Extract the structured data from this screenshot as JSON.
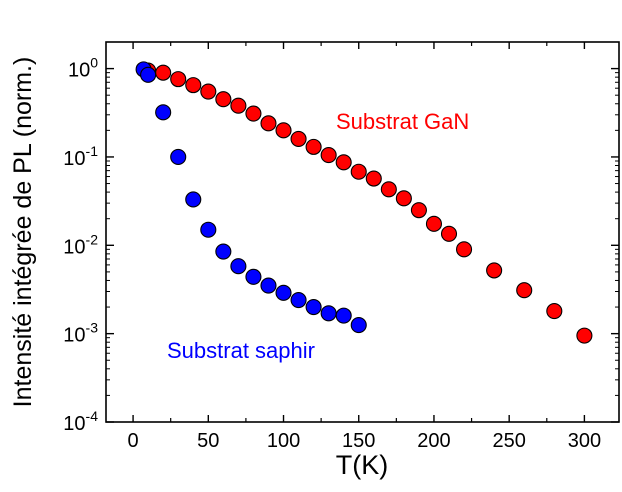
{
  "chart_data": {
    "type": "scatter",
    "xlabel": "T(K)",
    "ylabel": "Intensité intégrée de PL (norm.)",
    "xlim": [
      -18,
      323
    ],
    "ylim": [
      0.0001,
      2
    ],
    "yscale": "log",
    "xticks": [
      "0",
      "50",
      "100",
      "150",
      "200",
      "250",
      "300"
    ],
    "xtick_values": [
      0,
      50,
      100,
      150,
      200,
      250,
      300
    ],
    "ytick_values": [
      0.0001,
      0.001,
      0.01,
      0.1,
      1
    ],
    "yticks": [
      {
        "base": "10",
        "exp": "-4"
      },
      {
        "base": "10",
        "exp": "-3"
      },
      {
        "base": "10",
        "exp": "-2"
      },
      {
        "base": "10",
        "exp": "-1"
      },
      {
        "base": "10",
        "exp": "0"
      }
    ],
    "grid": false,
    "series": [
      {
        "name": "Substrat GaN",
        "color": "#ff0000",
        "x": [
          10,
          20,
          30,
          40,
          50,
          60,
          70,
          80,
          90,
          100,
          110,
          120,
          130,
          140,
          150,
          160,
          170,
          180,
          190,
          200,
          210,
          220,
          240,
          260,
          280,
          300
        ],
        "y": [
          0.95,
          0.9,
          0.76,
          0.65,
          0.55,
          0.45,
          0.38,
          0.31,
          0.24,
          0.2,
          0.16,
          0.13,
          0.105,
          0.087,
          0.068,
          0.057,
          0.043,
          0.034,
          0.025,
          0.0175,
          0.0135,
          0.009,
          0.0052,
          0.0031,
          0.0018,
          0.00095
        ]
      },
      {
        "name": "Substrat saphir",
        "color": "#0000ff",
        "x": [
          7,
          10,
          20,
          30,
          40,
          50,
          60,
          70,
          80,
          90,
          100,
          110,
          120,
          130,
          140,
          150
        ],
        "y": [
          0.98,
          0.85,
          0.32,
          0.1,
          0.033,
          0.015,
          0.0085,
          0.0058,
          0.0044,
          0.0035,
          0.0029,
          0.0024,
          0.002,
          0.0017,
          0.0016,
          0.00125
        ]
      }
    ],
    "annotations": [
      {
        "text": "Substrat GaN",
        "color": "#ff0000"
      },
      {
        "text": "Substrat saphir",
        "color": "#0000ff"
      }
    ]
  }
}
